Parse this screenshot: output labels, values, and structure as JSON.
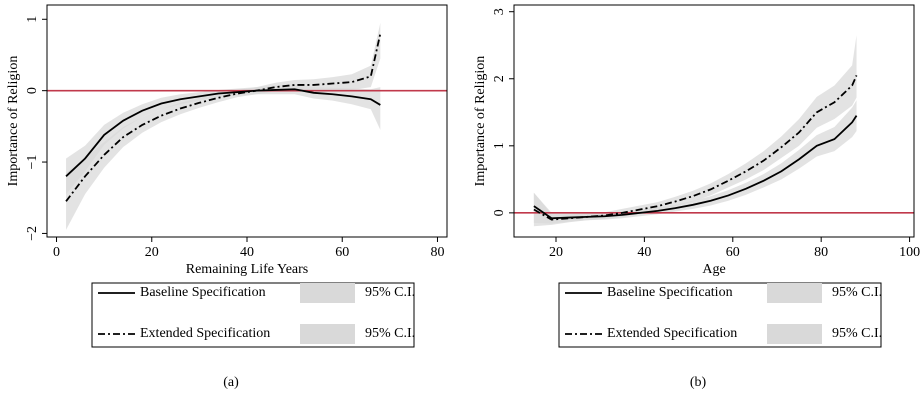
{
  "chart_data": [
    {
      "type": "line",
      "caption": "(a)",
      "xlabel": "Remaining Life Years",
      "ylabel": "Importance of Religion",
      "xlim": [
        -2,
        82
      ],
      "ylim": [
        -2.05,
        1.2
      ],
      "xticks": [
        0,
        20,
        40,
        60,
        80
      ],
      "yticks": [
        {
          "value": -2,
          "label": "−2"
        },
        {
          "value": -1,
          "label": "−1"
        },
        0,
        1
      ],
      "reference_line": 0,
      "reference_color": "#c0394b",
      "band_color": "#d9d9d9",
      "x": [
        2,
        6,
        10,
        14,
        18,
        22,
        26,
        30,
        34,
        38,
        42,
        46,
        50,
        54,
        58,
        62,
        66,
        68
      ],
      "series": [
        {
          "name": "Baseline Specification",
          "ci_label": "95% C.I.",
          "color": "#000000",
          "dash": "solid",
          "values": [
            -1.2,
            -0.95,
            -0.62,
            -0.42,
            -0.28,
            -0.18,
            -0.12,
            -0.08,
            -0.04,
            -0.02,
            0,
            0.01,
            0.02,
            -0.03,
            -0.05,
            -0.08,
            -0.12,
            -0.2
          ],
          "lower": [
            -1.45,
            -1.13,
            -0.76,
            -0.53,
            -0.37,
            -0.26,
            -0.19,
            -0.14,
            -0.09,
            -0.07,
            -0.05,
            -0.05,
            -0.05,
            -0.11,
            -0.14,
            -0.19,
            -0.26,
            -0.55
          ],
          "upper": [
            -0.95,
            -0.77,
            -0.48,
            -0.31,
            -0.19,
            -0.1,
            -0.05,
            -0.02,
            0.01,
            0.03,
            0.05,
            0.07,
            0.09,
            0.05,
            0.04,
            0.03,
            0.02,
            0.05
          ]
        },
        {
          "name": "Extended Specification",
          "ci_label": "95% C.I.",
          "color": "#000000",
          "dash": "dashdot",
          "values": [
            -1.55,
            -1.2,
            -0.9,
            -0.65,
            -0.48,
            -0.35,
            -0.25,
            -0.17,
            -0.1,
            -0.04,
            0,
            0.05,
            0.08,
            0.08,
            0.1,
            0.12,
            0.2,
            0.8
          ],
          "lower": [
            -1.95,
            -1.45,
            -1.08,
            -0.79,
            -0.59,
            -0.44,
            -0.33,
            -0.24,
            -0.16,
            -0.09,
            -0.05,
            -0.01,
            0.01,
            0,
            0.01,
            0.01,
            0.05,
            0.45
          ],
          "upper": [
            -1.15,
            -0.95,
            -0.72,
            -0.51,
            -0.37,
            -0.26,
            -0.17,
            -0.1,
            -0.04,
            0.01,
            0.05,
            0.11,
            0.15,
            0.16,
            0.19,
            0.23,
            0.35,
            0.95
          ]
        }
      ]
    },
    {
      "type": "line",
      "caption": "(b)",
      "xlabel": "Age",
      "ylabel": "Importance of Religion",
      "xlim": [
        10.5,
        101
      ],
      "ylim": [
        -0.36,
        3.1
      ],
      "xticks": [
        20,
        40,
        60,
        80,
        100
      ],
      "yticks": [
        0,
        1,
        2,
        3
      ],
      "reference_line": 0,
      "reference_color": "#c0394b",
      "band_color": "#d9d9d9",
      "x": [
        15,
        19,
        23,
        27,
        31,
        35,
        39,
        43,
        47,
        51,
        55,
        59,
        63,
        67,
        71,
        75,
        79,
        83,
        87,
        88
      ],
      "series": [
        {
          "name": "Baseline Specification",
          "ci_label": "95% C.I.",
          "color": "#000000",
          "dash": "solid",
          "values": [
            0.1,
            -0.08,
            -0.07,
            -0.06,
            -0.05,
            -0.03,
            0,
            0.03,
            0.07,
            0.12,
            0.18,
            0.26,
            0.36,
            0.48,
            0.62,
            0.8,
            1.0,
            1.1,
            1.35,
            1.45
          ],
          "lower": [
            -0.15,
            -0.16,
            -0.13,
            -0.11,
            -0.1,
            -0.08,
            -0.05,
            -0.02,
            0.02,
            0.06,
            0.11,
            0.18,
            0.27,
            0.38,
            0.5,
            0.66,
            0.84,
            0.92,
            1.13,
            1.22
          ],
          "upper": [
            0.3,
            0,
            -0.01,
            -0.01,
            0,
            0.02,
            0.05,
            0.08,
            0.12,
            0.18,
            0.25,
            0.34,
            0.45,
            0.58,
            0.74,
            0.94,
            1.16,
            1.28,
            1.57,
            1.68
          ]
        },
        {
          "name": "Extended Specification",
          "ci_label": "95% C.I.",
          "color": "#000000",
          "dash": "dashdot",
          "values": [
            0.05,
            -0.1,
            -0.08,
            -0.06,
            -0.04,
            0,
            0.05,
            0.1,
            0.17,
            0.25,
            0.35,
            0.48,
            0.62,
            0.78,
            0.98,
            1.2,
            1.5,
            1.65,
            1.9,
            2.05
          ],
          "lower": [
            -0.2,
            -0.18,
            -0.14,
            -0.11,
            -0.09,
            -0.06,
            -0.01,
            0.04,
            0.1,
            0.17,
            0.26,
            0.38,
            0.5,
            0.64,
            0.82,
            1.0,
            1.27,
            1.4,
            1.6,
            1.72
          ],
          "upper": [
            0.3,
            -0.02,
            -0.02,
            -0.01,
            0.01,
            0.06,
            0.11,
            0.16,
            0.24,
            0.33,
            0.44,
            0.58,
            0.74,
            0.92,
            1.14,
            1.4,
            1.73,
            1.9,
            2.2,
            2.65
          ]
        }
      ]
    }
  ]
}
